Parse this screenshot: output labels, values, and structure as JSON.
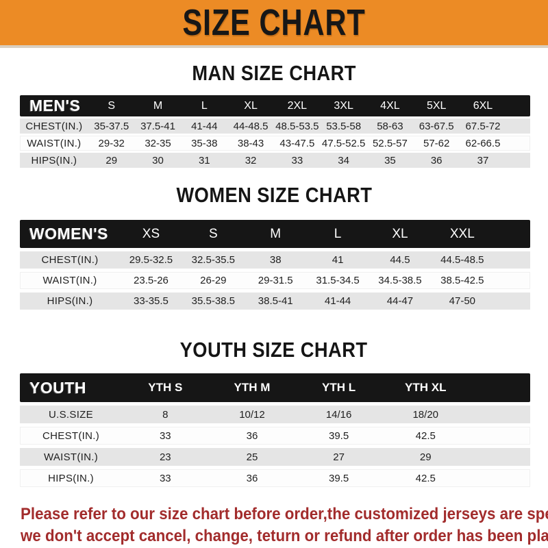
{
  "banner": {
    "title": "SIZE CHART"
  },
  "colors": {
    "banner_bg": "#EC8B25",
    "band_bg": "#161616",
    "row_gray": "#E5E5E5",
    "footer_red": "#A22C2C"
  },
  "sections": [
    {
      "heading": "MAN SIZE CHART",
      "table": {
        "id": "mens",
        "corner_label": "MEN'S",
        "columns": [
          "S",
          "M",
          "L",
          "XL",
          "2XL",
          "3XL",
          "4XL",
          "5XL",
          "6XL"
        ],
        "rows": [
          {
            "label": "CHEST(IN.)",
            "values": [
              "35-37.5",
              "37.5-41",
              "41-44",
              "44-48.5",
              "48.5-53.5",
              "53.5-58",
              "58-63",
              "63-67.5",
              "67.5-72"
            ]
          },
          {
            "label": "WAIST(IN.)",
            "values": [
              "29-32",
              "32-35",
              "35-38",
              "38-43",
              "43-47.5",
              "47.5-52.5",
              "52.5-57",
              "57-62",
              "62-66.5"
            ]
          },
          {
            "label": "HIPS(IN.)",
            "values": [
              "29",
              "30",
              "31",
              "32",
              "33",
              "34",
              "35",
              "36",
              "37"
            ]
          }
        ]
      }
    },
    {
      "heading": "WOMEN SIZE CHART",
      "table": {
        "id": "womens",
        "corner_label": "WOMEN'S",
        "columns": [
          "XS",
          "S",
          "M",
          "L",
          "XL",
          "XXL"
        ],
        "rows": [
          {
            "label": "CHEST(IN.)",
            "values": [
              "29.5-32.5",
              "32.5-35.5",
              "38",
              "41",
              "44.5",
              "44.5-48.5"
            ]
          },
          {
            "label": "WAIST(IN.)",
            "values": [
              "23.5-26",
              "26-29",
              "29-31.5",
              "31.5-34.5",
              "34.5-38.5",
              "38.5-42.5"
            ]
          },
          {
            "label": "HIPS(IN.)",
            "values": [
              "33-35.5",
              "35.5-38.5",
              "38.5-41",
              "41-44",
              "44-47",
              "47-50"
            ]
          }
        ]
      }
    },
    {
      "heading": "YOUTH SIZE CHART",
      "table": {
        "id": "youth",
        "corner_label": "YOUTH",
        "columns": [
          "YTH S",
          "YTH M",
          "YTH L",
          "YTH XL"
        ],
        "rows": [
          {
            "label": "U.S.SIZE",
            "values": [
              "8",
              "10/12",
              "14/16",
              "18/20"
            ]
          },
          {
            "label": "CHEST(IN.)",
            "values": [
              "33",
              "36",
              "39.5",
              "42.5"
            ]
          },
          {
            "label": "WAIST(IN.)",
            "values": [
              "23",
              "25",
              "27",
              "29"
            ]
          },
          {
            "label": "HIPS(IN.)",
            "values": [
              "33",
              "36",
              "39.5",
              "42.5"
            ]
          }
        ]
      }
    }
  ],
  "footer": {
    "lines": [
      "Please refer to our size chart before order,the customized jerseys are special products,",
      "we don't accept cancel, change, teturn or refund after order has been placed!"
    ]
  }
}
